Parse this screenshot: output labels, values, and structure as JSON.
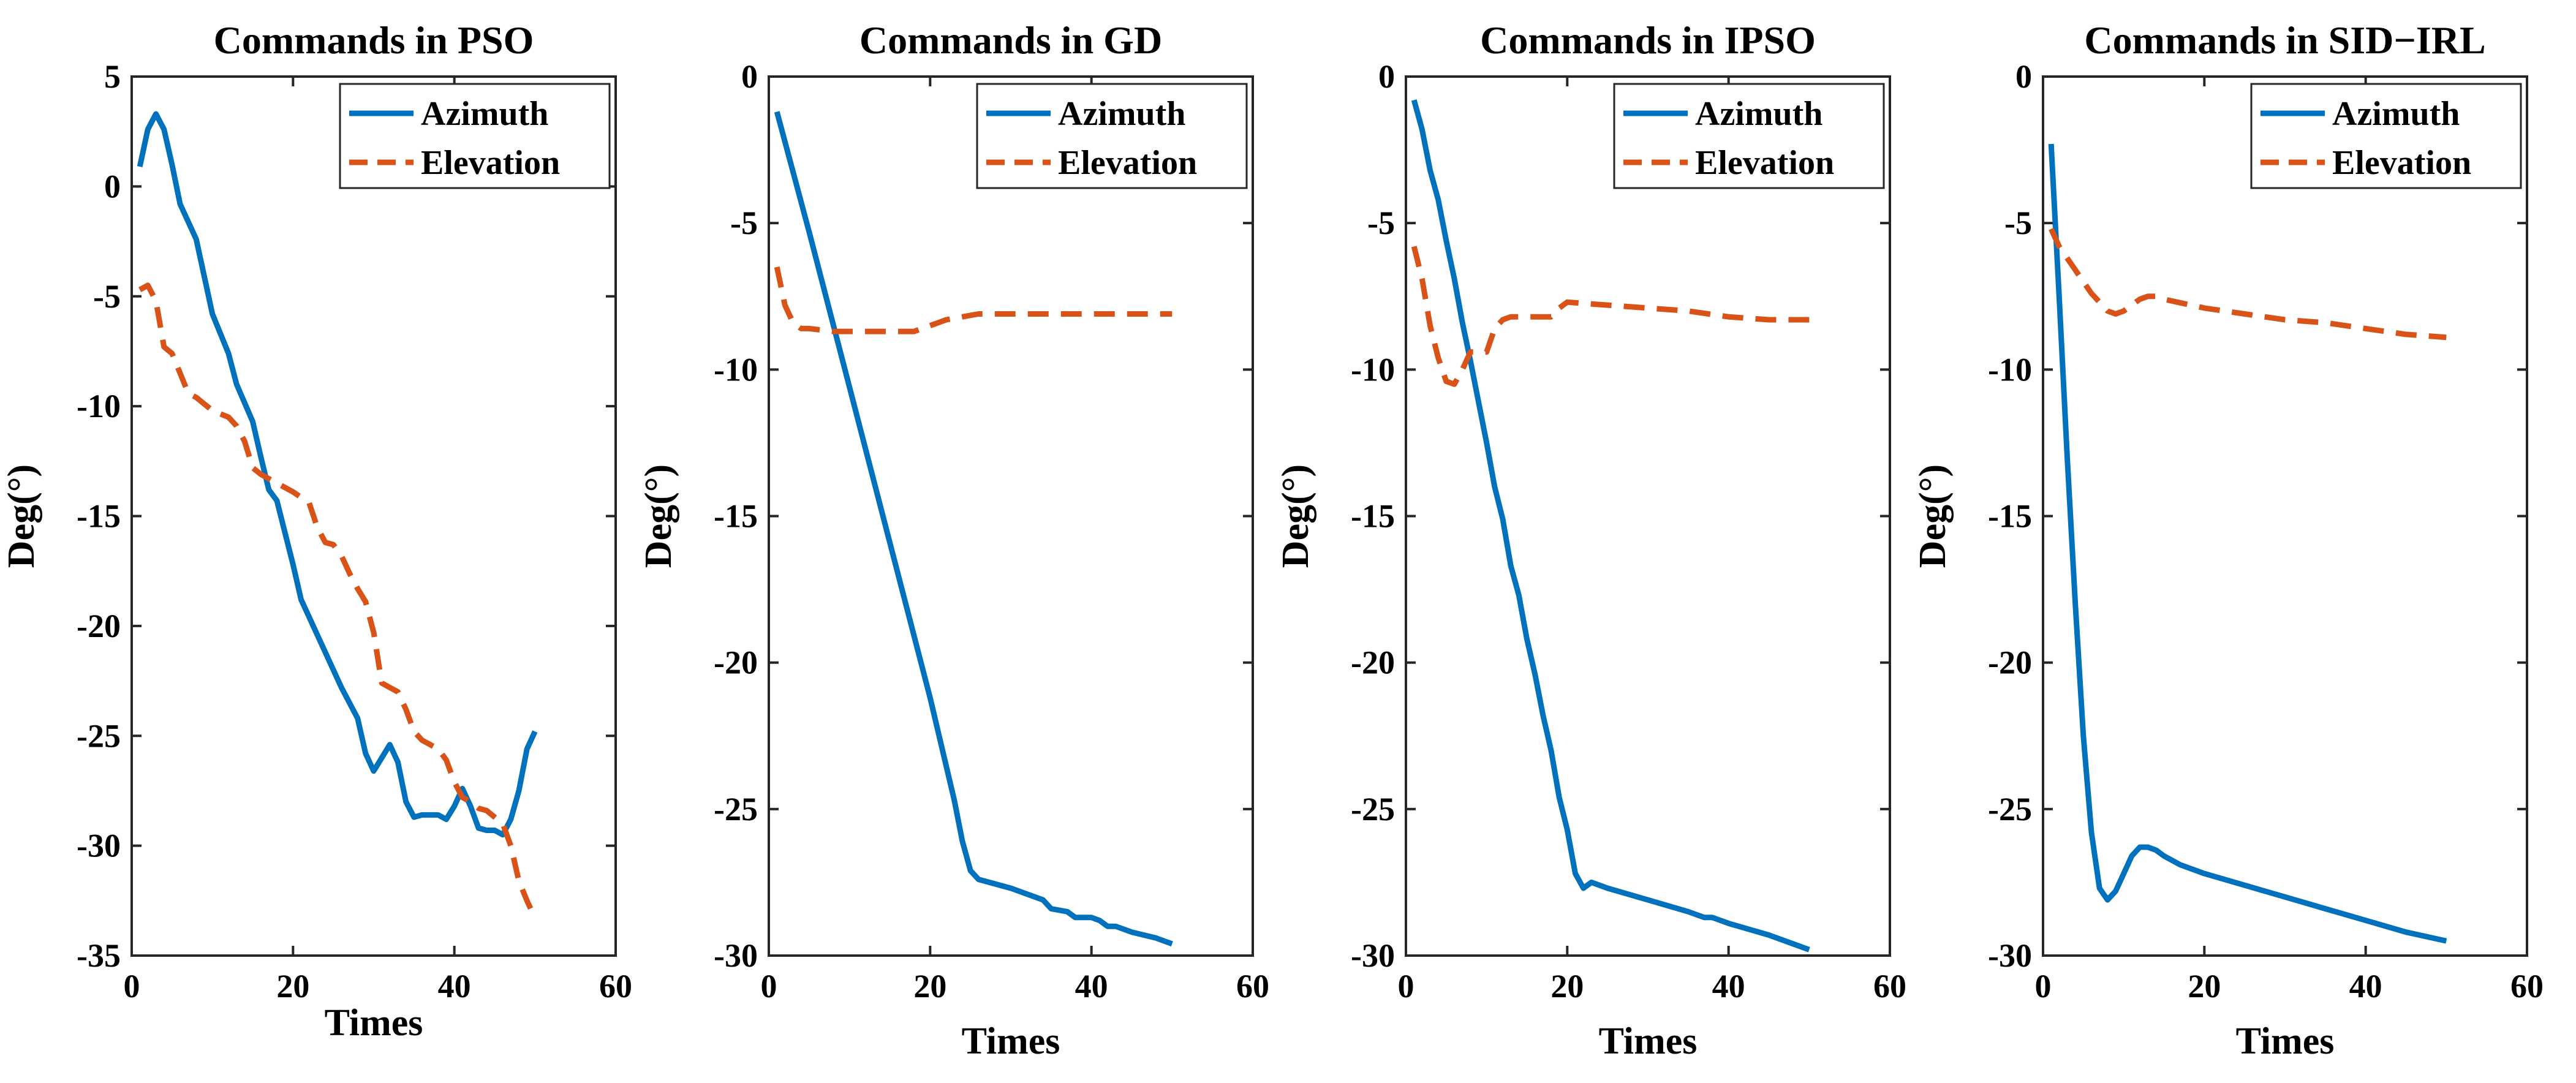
{
  "figure": {
    "colors": {
      "azimuth": "#0072BD",
      "elevation": "#D95319",
      "axis": "#262626"
    }
  },
  "chart_data": [
    {
      "type": "line",
      "title": "Commands in PSO",
      "xlabel": "Times",
      "ylabel": "Deg(°)",
      "xlim": [
        0,
        60
      ],
      "ylim": [
        -35,
        5
      ],
      "xticks": [
        0,
        20,
        40,
        60
      ],
      "yticks": [
        5,
        0,
        -5,
        -10,
        -15,
        -20,
        -25,
        -30,
        -35
      ],
      "legend": "top-right",
      "grid": false,
      "series": [
        {
          "name": "Azimuth",
          "style": "solid",
          "x": [
            1,
            2,
            3,
            4,
            5,
            6,
            8,
            10,
            12,
            13,
            15,
            16,
            17,
            18,
            20,
            21,
            22,
            24,
            26,
            28,
            29,
            30,
            31,
            32,
            33,
            34,
            35,
            36,
            37,
            38,
            39,
            40,
            41,
            42,
            43,
            44,
            45,
            46,
            47,
            48,
            49,
            50
          ],
          "y": [
            0.9,
            2.6,
            3.3,
            2.6,
            1,
            -0.8,
            -2.4,
            -5.8,
            -7.6,
            -9,
            -10.7,
            -12.3,
            -13.8,
            -14.3,
            -17.2,
            -18.8,
            -19.6,
            -21.2,
            -22.8,
            -24.2,
            -25.8,
            -26.6,
            -26,
            -25.4,
            -26.2,
            -28,
            -28.7,
            -28.6,
            -28.6,
            -28.6,
            -28.8,
            -28.2,
            -27.4,
            -28.2,
            -29.2,
            -29.3,
            -29.3,
            -29.5,
            -28.8,
            -27.5,
            -25.6,
            -24.8
          ]
        },
        {
          "name": "Elevation",
          "style": "dashed",
          "x": [
            1,
            2,
            3,
            4,
            5,
            6,
            7,
            8,
            10,
            12,
            13,
            14,
            15,
            16,
            18,
            20,
            22,
            23,
            24,
            25,
            26,
            27,
            28,
            29,
            30,
            31,
            32,
            33,
            34,
            35,
            36,
            37,
            38,
            39,
            40,
            41,
            42,
            43,
            44,
            45,
            46,
            47,
            48,
            49,
            50
          ],
          "y": [
            -4.7,
            -4.5,
            -5.2,
            -7.3,
            -7.6,
            -8.5,
            -9.4,
            -9.6,
            -10.2,
            -10.5,
            -10.9,
            -11.6,
            -12.8,
            -13.1,
            -13.5,
            -13.9,
            -14.4,
            -15.5,
            -16.2,
            -16.3,
            -16.8,
            -17.6,
            -18.3,
            -18.9,
            -20.3,
            -22.6,
            -22.8,
            -23,
            -23.8,
            -24.8,
            -25.2,
            -25.4,
            -25.6,
            -26.1,
            -27.1,
            -27.8,
            -28,
            -28.3,
            -28.4,
            -28.7,
            -29,
            -30,
            -31.6,
            -32.5,
            -33.3
          ]
        }
      ]
    },
    {
      "type": "line",
      "title": "Commands in GD",
      "xlabel": "Times",
      "ylabel": "Deg(°)",
      "xlim": [
        0,
        60
      ],
      "ylim": [
        -30,
        0
      ],
      "xticks": [
        0,
        20,
        40,
        60
      ],
      "yticks": [
        0,
        -5,
        -10,
        -15,
        -20,
        -25,
        -30
      ],
      "legend": "top-right",
      "grid": false,
      "series": [
        {
          "name": "Azimuth",
          "style": "solid",
          "x": [
            1,
            5,
            10,
            15,
            20,
            23,
            24,
            25,
            26,
            30,
            34,
            35,
            37,
            38,
            40,
            41,
            42,
            43,
            45,
            48,
            50
          ],
          "y": [
            -1.2,
            -5.3,
            -10.6,
            -15.9,
            -21.2,
            -24.7,
            -26.1,
            -27.1,
            -27.4,
            -27.7,
            -28.1,
            -28.4,
            -28.5,
            -28.7,
            -28.7,
            -28.8,
            -29,
            -29,
            -29.2,
            -29.4,
            -29.6
          ]
        },
        {
          "name": "Elevation",
          "style": "dashed",
          "x": [
            1,
            2,
            3,
            4,
            5,
            8,
            12,
            15,
            18,
            20,
            22,
            24,
            26,
            30,
            40,
            50
          ],
          "y": [
            -6.5,
            -7.8,
            -8.4,
            -8.6,
            -8.6,
            -8.7,
            -8.7,
            -8.7,
            -8.7,
            -8.5,
            -8.3,
            -8.2,
            -8.1,
            -8.1,
            -8.1,
            -8.1
          ]
        }
      ]
    },
    {
      "type": "line",
      "title": "Commands in IPSO",
      "xlabel": "Times",
      "ylabel": "Deg(°)",
      "xlim": [
        0,
        60
      ],
      "ylim": [
        -30,
        0
      ],
      "xticks": [
        0,
        20,
        40,
        60
      ],
      "yticks": [
        0,
        -5,
        -10,
        -15,
        -20,
        -25,
        -30
      ],
      "legend": "top-right",
      "grid": false,
      "series": [
        {
          "name": "Azimuth",
          "style": "solid",
          "x": [
            1,
            2,
            3,
            4,
            5,
            6,
            7,
            8,
            9,
            10,
            11,
            12,
            13,
            14,
            15,
            16,
            17,
            18,
            19,
            20,
            21,
            22,
            23,
            25,
            30,
            35,
            37,
            38,
            40,
            45,
            50
          ],
          "y": [
            -0.8,
            -1.8,
            -3.2,
            -4.2,
            -5.6,
            -6.9,
            -8.4,
            -9.7,
            -11.1,
            -12.5,
            -14,
            -15.1,
            -16.7,
            -17.7,
            -19.2,
            -20.4,
            -21.8,
            -23,
            -24.6,
            -25.7,
            -27.2,
            -27.7,
            -27.5,
            -27.7,
            -28.1,
            -28.5,
            -28.7,
            -28.7,
            -28.9,
            -29.3,
            -29.8
          ]
        },
        {
          "name": "Elevation",
          "style": "dashed",
          "x": [
            1,
            2,
            3,
            4,
            5,
            6,
            7,
            8,
            9,
            10,
            11,
            12,
            13,
            14,
            15,
            16,
            17,
            18,
            19,
            20,
            25,
            30,
            35,
            40,
            45,
            50
          ],
          "y": [
            -5.8,
            -6.9,
            -8.5,
            -9.6,
            -10.4,
            -10.5,
            -10,
            -9.4,
            -9.4,
            -9.4,
            -8.6,
            -8.3,
            -8.2,
            -8.2,
            -8.2,
            -8.2,
            -8.2,
            -8.2,
            -7.9,
            -7.7,
            -7.8,
            -7.9,
            -8,
            -8.2,
            -8.3,
            -8.3
          ]
        }
      ]
    },
    {
      "type": "line",
      "title": "Commands in SID−IRL",
      "xlabel": "Times",
      "ylabel": "Deg(°)",
      "xlim": [
        0,
        60
      ],
      "ylim": [
        -30,
        0
      ],
      "xticks": [
        0,
        20,
        40,
        60
      ],
      "yticks": [
        0,
        -5,
        -10,
        -15,
        -20,
        -25,
        -30
      ],
      "legend": "top-right",
      "grid": false,
      "series": [
        {
          "name": "Azimuth",
          "style": "solid",
          "x": [
            1,
            2,
            3,
            4,
            5,
            6,
            7,
            8,
            9,
            10,
            11,
            12,
            13,
            14,
            15,
            17,
            20,
            25,
            30,
            35,
            40,
            45,
            50
          ],
          "y": [
            -2.3,
            -7.5,
            -13,
            -18,
            -22.5,
            -25.8,
            -27.7,
            -28.1,
            -27.8,
            -27.2,
            -26.6,
            -26.3,
            -26.3,
            -26.4,
            -26.6,
            -26.9,
            -27.2,
            -27.6,
            -28,
            -28.4,
            -28.8,
            -29.2,
            -29.5
          ]
        },
        {
          "name": "Elevation",
          "style": "dashed",
          "x": [
            1,
            2,
            3,
            4,
            5,
            6,
            7,
            8,
            9,
            10,
            11,
            12,
            13,
            14,
            15,
            20,
            25,
            30,
            35,
            40,
            45,
            50
          ],
          "y": [
            -5.2,
            -5.8,
            -6.2,
            -6.6,
            -7,
            -7.4,
            -7.7,
            -8,
            -8.1,
            -8,
            -7.8,
            -7.6,
            -7.5,
            -7.5,
            -7.6,
            -7.9,
            -8.1,
            -8.3,
            -8.4,
            -8.6,
            -8.8,
            -8.9
          ]
        }
      ]
    }
  ]
}
